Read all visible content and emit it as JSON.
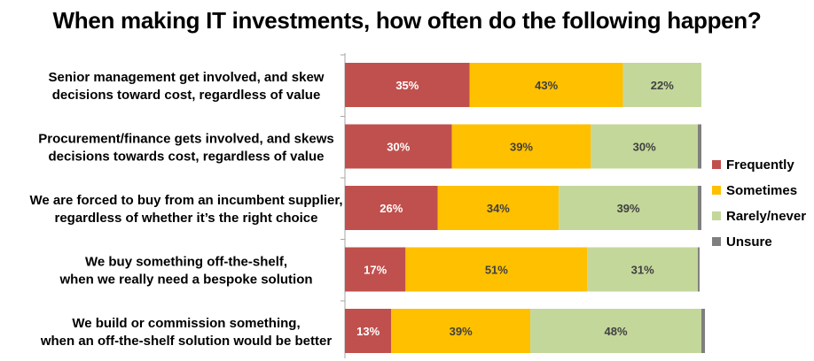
{
  "chart_data": {
    "type": "bar",
    "orientation": "horizontal",
    "stacked": true,
    "title": "When making IT investments, how often do the following happen?",
    "categories": [
      [
        "Senior management get involved, and skew",
        "decisions toward cost, regardless of value"
      ],
      [
        "Procurement/finance gets involved, and skews",
        "decisions towards cost, regardless of value"
      ],
      [
        "We are forced to buy from an incumbent supplier,",
        "regardless of whether it’s the right choice"
      ],
      [
        "We buy something off-the-shelf,",
        "when we really need a bespoke solution"
      ],
      [
        "We build or commission something,",
        "when an off-the-shelf solution would be better"
      ]
    ],
    "series": [
      {
        "name": "Frequently",
        "color": "#c0504d",
        "label_color": "#ffffff",
        "values": [
          35,
          30,
          26,
          17,
          13
        ]
      },
      {
        "name": "Sometimes",
        "color": "#ffc000",
        "label_color": "#404040",
        "values": [
          43,
          39,
          34,
          51,
          39
        ]
      },
      {
        "name": "Rarely/never",
        "color": "#c4d79b",
        "label_color": "#404040",
        "values": [
          22,
          30,
          39,
          31,
          48
        ]
      },
      {
        "name": "Unsure",
        "color": "#7f7f7f",
        "label_color": "#404040",
        "values": [
          0,
          1,
          1,
          0.5,
          1
        ]
      }
    ],
    "value_suffix": "%",
    "xlim": [
      0,
      100
    ],
    "grid": false,
    "legend_position": "right"
  }
}
